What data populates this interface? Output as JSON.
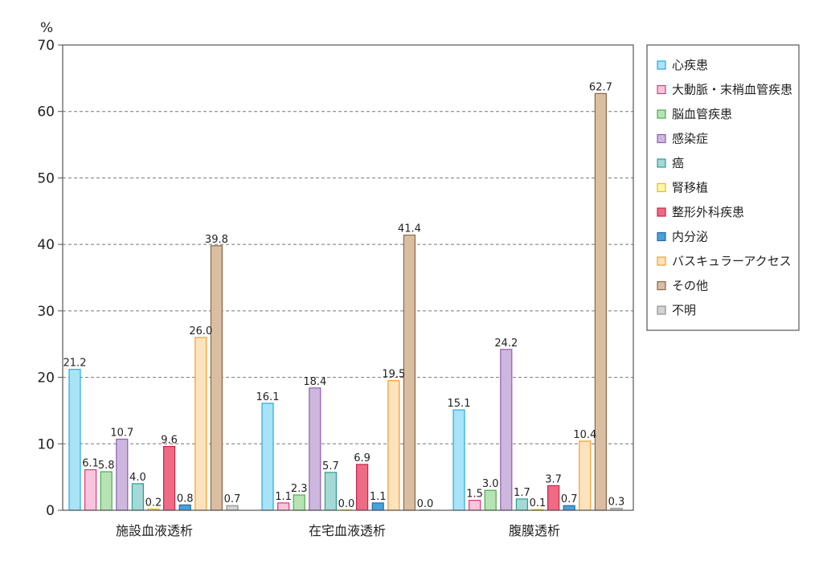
{
  "chart_data": {
    "type": "bar",
    "unit_label": "%",
    "ylim": [
      0,
      70
    ],
    "yticks": [
      0,
      10,
      20,
      30,
      40,
      50,
      60,
      70
    ],
    "grid": true,
    "legend_position": "right",
    "categories": [
      "施設血液透析",
      "在宅血液透析",
      "腹膜透析"
    ],
    "series": [
      {
        "name": "心疾患",
        "values": [
          21.2,
          16.1,
          15.1
        ],
        "fill": "#a9e3f7",
        "stroke": "#29a8e0"
      },
      {
        "name": "大動脈・末梢血管疾患",
        "values": [
          6.1,
          1.1,
          1.5
        ],
        "fill": "#f8c5dc",
        "stroke": "#e5337c"
      },
      {
        "name": "脳血管疾患",
        "values": [
          5.8,
          2.3,
          3.0
        ],
        "fill": "#b6e3b4",
        "stroke": "#4ea84d"
      },
      {
        "name": "感染症",
        "values": [
          10.7,
          18.4,
          24.2
        ],
        "fill": "#cdb7de",
        "stroke": "#8c5fad"
      },
      {
        "name": "癌",
        "values": [
          4.0,
          5.7,
          1.7
        ],
        "fill": "#a3d9d6",
        "stroke": "#2e9c99"
      },
      {
        "name": "腎移植",
        "values": [
          0.2,
          0.0,
          0.1
        ],
        "fill": "#fff5b0",
        "stroke": "#e2c500"
      },
      {
        "name": "整形外科疾患",
        "values": [
          9.6,
          6.9,
          3.7
        ],
        "fill": "#ee6a85",
        "stroke": "#c72447"
      },
      {
        "name": "内分泌",
        "values": [
          0.8,
          1.1,
          0.7
        ],
        "fill": "#4aa0d9",
        "stroke": "#1d6ea8"
      },
      {
        "name": "バスキュラーアクセス",
        "values": [
          26.0,
          19.5,
          10.4
        ],
        "fill": "#fde3bd",
        "stroke": "#f39c2c"
      },
      {
        "name": "その他",
        "values": [
          39.8,
          41.4,
          62.7
        ],
        "fill": "#d9bea2",
        "stroke": "#8c6747"
      },
      {
        "name": "不明",
        "values": [
          0.7,
          0.0,
          0.3
        ],
        "fill": "#d3d3d3",
        "stroke": "#909090"
      }
    ],
    "data_labels": [
      [
        "21.2",
        "6.1",
        "5.8",
        "10.7",
        "4.0",
        "0.2",
        "9.6",
        "0.8",
        "26.0",
        "39.8",
        "0.7"
      ],
      [
        "16.1",
        "1.1",
        "2.3",
        "18.4",
        "5.7",
        "0.0",
        "6.9",
        "1.1",
        "19.5",
        "41.4",
        "0.0"
      ],
      [
        "15.1",
        "1.5",
        "3.0",
        "24.2",
        "1.7",
        "0.1",
        "3.7",
        "0.7",
        "10.4",
        "62.7",
        "0.3"
      ]
    ]
  }
}
